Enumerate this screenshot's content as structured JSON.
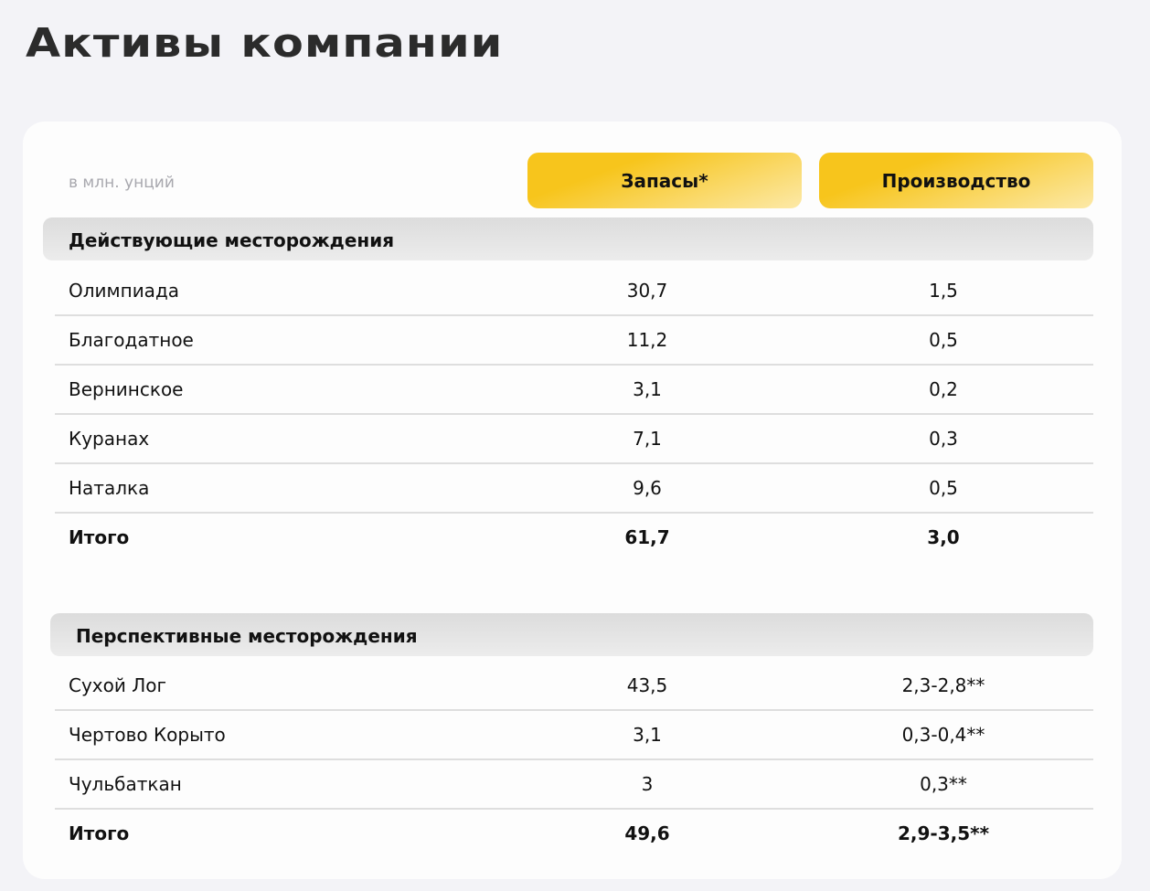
{
  "title": "Активы компании",
  "table": {
    "unit_label": "в млн. унций",
    "columns": [
      "Запасы*",
      "Производство"
    ],
    "sections": [
      {
        "title": "Действующие месторождения",
        "rows": [
          {
            "name": "Олимпиада",
            "reserves": "30,7",
            "production": "1,5"
          },
          {
            "name": "Благодатное",
            "reserves": "11,2",
            "production": "0,5"
          },
          {
            "name": "Вернинское",
            "reserves": "3,1",
            "production": "0,2"
          },
          {
            "name": "Куранах",
            "reserves": "7,1",
            "production": "0,3"
          },
          {
            "name": "Наталка",
            "reserves": "9,6",
            "production": "0,5"
          },
          {
            "name": "Итого",
            "reserves": "61,7",
            "production": "3,0"
          }
        ]
      },
      {
        "title": "Перспективные месторождения",
        "rows": [
          {
            "name": "Сухой Лог",
            "reserves": "43,5",
            "production": "2,3-2,8**"
          },
          {
            "name": "Чертово Корыто",
            "reserves": "3,1",
            "production": "0,3-0,4**"
          },
          {
            "name": "Чульбаткан",
            "reserves": "3",
            "production": "0,3**"
          },
          {
            "name": "Итого",
            "reserves": "49,6",
            "production": "2,9-3,5**"
          }
        ]
      }
    ]
  },
  "colors": {
    "accent": "#f7c51c",
    "background": "#f3f3f7",
    "card": "#fdfdfd"
  }
}
